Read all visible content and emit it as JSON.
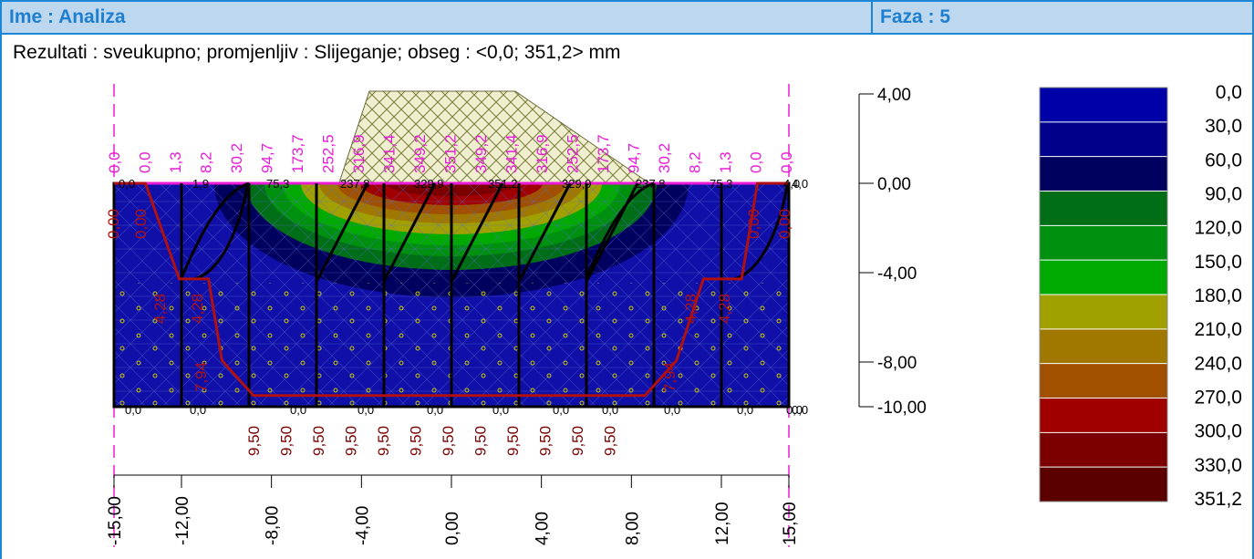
{
  "header": {
    "name": "Ime : Analiza",
    "phase": "Faza : 5"
  },
  "results_line": "Rezultati : sveukupno; promjenljiv : Slijeganje; obseg : <0,0; 351,2> mm",
  "chart_data": {
    "type": "heatmap",
    "x_axis": {
      "ticks": [
        -15,
        -12,
        -8,
        -4,
        0,
        4,
        8,
        12,
        15
      ],
      "tick_labels": [
        "-15,00",
        "-12,00",
        "-8,00",
        "-4,00",
        "0,00",
        "4,00",
        "8,00",
        "12,00",
        "15,00"
      ]
    },
    "y_axis": {
      "ticks": [
        4,
        0,
        -4,
        -8,
        -10
      ],
      "tick_labels": [
        "4,00",
        "0,00",
        "-4,00",
        "-8,00",
        "-10,00"
      ]
    },
    "color_scale": {
      "labels": [
        "0,0",
        "30,0",
        "60,0",
        "90,0",
        "120,0",
        "150,0",
        "180,0",
        "210,0",
        "240,0",
        "270,0",
        "300,0",
        "330,0",
        "351,2"
      ],
      "colors": [
        "#0000a8",
        "#00008a",
        "#00005e",
        "#006e16",
        "#009010",
        "#00aa00",
        "#a0a000",
        "#a07800",
        "#a05000",
        "#a00000",
        "#7c0000",
        "#5a0000"
      ]
    },
    "surface_settlement_labels": [
      "0,0",
      "0,0",
      "1,3",
      "8,2",
      "30,2",
      "94,7",
      "173,7",
      "252,5",
      "316,9",
      "341,4",
      "349,2",
      "351,2",
      "349,2",
      "341,4",
      "316,9",
      "252,5",
      "173,7",
      "94,7",
      "30,2",
      "8,2",
      "1,3",
      "0,0",
      "0,0"
    ],
    "surface_overlap_labels": [
      "0,0",
      "1,9",
      "75,3",
      "237,8",
      "329,9",
      "351,2",
      "329,9",
      "237,8",
      "75,3",
      "4,0"
    ],
    "side_labels": [
      "0,00",
      "0,00",
      "0,00",
      "0,00",
      "4,28",
      "4,28",
      "4,28",
      "4,28",
      "7,94",
      "7,94"
    ],
    "bottom_labels": [
      "9,50",
      "9,50",
      "9,50",
      "9,50",
      "9,50",
      "9,50",
      "9,50",
      "9,50",
      "9,50",
      "9,50",
      "9,50",
      "9,50"
    ],
    "base_labels": [
      "0,0",
      "0,0",
      "0,0",
      "0,0",
      "0,0",
      "0,0",
      "0,0",
      "0,0",
      "0,0",
      "0,0",
      "0,0",
      "0,0"
    ],
    "right_marker_labels": [
      "4,0",
      "0,0"
    ],
    "bottom_profile_depth": [
      0,
      0,
      0,
      4.28,
      4.28,
      7.94,
      9.5,
      9.5,
      9.5,
      9.5,
      9.5,
      9.5,
      7.94,
      4.28,
      4.28,
      0,
      0
    ]
  }
}
